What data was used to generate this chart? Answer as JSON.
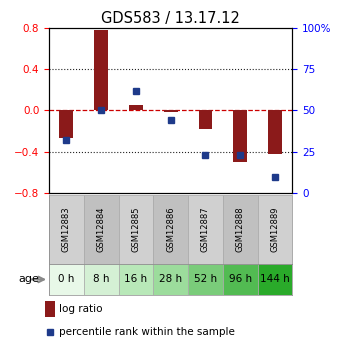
{
  "title": "GDS583 / 13.17.12",
  "samples": [
    "GSM12883",
    "GSM12884",
    "GSM12885",
    "GSM12886",
    "GSM12887",
    "GSM12888",
    "GSM12889"
  ],
  "ages": [
    "0 h",
    "8 h",
    "16 h",
    "28 h",
    "52 h",
    "96 h",
    "144 h"
  ],
  "log_ratio": [
    -0.27,
    0.78,
    0.05,
    -0.02,
    -0.18,
    -0.5,
    -0.42
  ],
  "percentile_rank": [
    32,
    50,
    62,
    44,
    23,
    23,
    10
  ],
  "bar_color": "#8B1A1A",
  "dot_color": "#1E3A8A",
  "ylim_left": [
    -0.8,
    0.8
  ],
  "ylim_right": [
    0,
    100
  ],
  "yticks_left": [
    -0.8,
    -0.4,
    0.0,
    0.4,
    0.8
  ],
  "yticks_right": [
    0,
    25,
    50,
    75,
    100
  ],
  "ytick_labels_right": [
    "0",
    "25",
    "50",
    "75",
    "100%"
  ],
  "hline_color": "#CC0000",
  "grid_color": "#222222",
  "age_colors": [
    "#e8f8e8",
    "#d4f0d4",
    "#b8e8b8",
    "#9cdc9c",
    "#7acc7a",
    "#52bb52",
    "#2aaa2a"
  ],
  "sample_cell_color": "#d0d0d0",
  "background_color": "#ffffff"
}
